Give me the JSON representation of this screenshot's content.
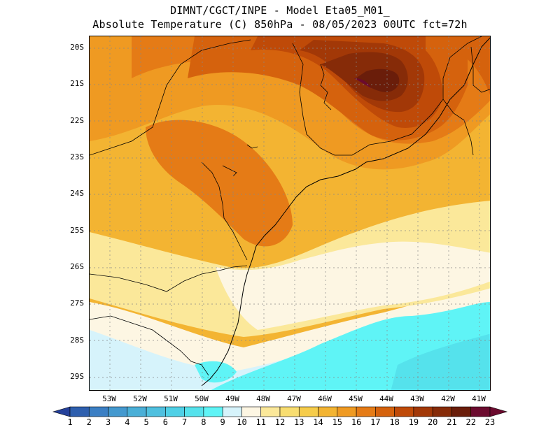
{
  "header": {
    "line1": "DIMNT/CGCT/INPE -  Model Eta05_M01_",
    "line2": "Absolute Temperature (C) 850hPa -  08/05/2023 00UTC fct=72h"
  },
  "map": {
    "lat_labels": [
      "20S",
      "21S",
      "22S",
      "23S",
      "24S",
      "25S",
      "26S",
      "27S",
      "28S",
      "29S"
    ],
    "lon_labels": [
      "53W",
      "52W",
      "51W",
      "50W",
      "49W",
      "48W",
      "47W",
      "46W",
      "45W",
      "44W",
      "43W",
      "42W",
      "41W"
    ],
    "palette": [
      "#24409a",
      "#2e5fae",
      "#3b7fc4",
      "#4499cf",
      "#4aafd7",
      "#4fc0df",
      "#4fd0e6",
      "#55e2ec",
      "#5ff4f6",
      "#d6f3fb",
      "#fdf6e3",
      "#fbe89a",
      "#f8dd70",
      "#f6cc4a",
      "#f3b432",
      "#ef9a22",
      "#e57b16",
      "#d5620d",
      "#bf4a08",
      "#a23807",
      "#862b08",
      "#6a1d0a",
      "#6b0a2e"
    ]
  },
  "colorbar": {
    "labels": [
      "1",
      "2",
      "3",
      "4",
      "5",
      "6",
      "7",
      "8",
      "9",
      "10",
      "11",
      "12",
      "13",
      "14",
      "15",
      "16",
      "17",
      "18",
      "19",
      "20",
      "21",
      "22",
      "23"
    ]
  }
}
